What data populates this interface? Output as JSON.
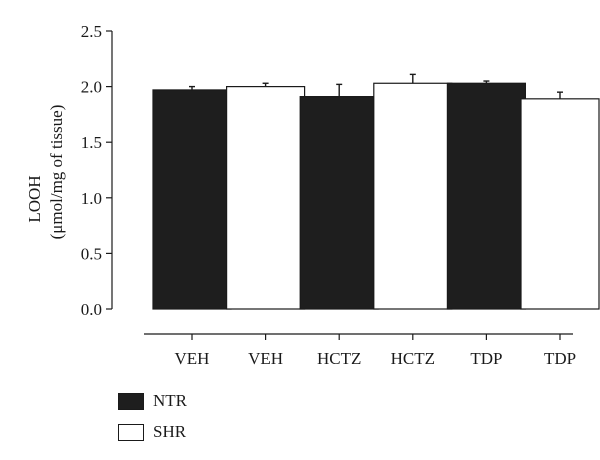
{
  "chart_data": {
    "type": "bar",
    "ylabel": "LOOH",
    "ylabel_sub": "(μmol/mg of tissue)",
    "ylim": [
      0,
      2.5
    ],
    "yticks": [
      "0.0",
      "0.5",
      "1.0",
      "1.5",
      "2.0",
      "2.5"
    ],
    "categories": [
      "VEH",
      "VEH",
      "HCTZ",
      "HCTZ",
      "TDP",
      "TDP"
    ],
    "groups": [
      "NTR",
      "SHR",
      "NTR",
      "SHR",
      "NTR",
      "SHR"
    ],
    "values": [
      1.97,
      2.0,
      1.91,
      2.03,
      2.03,
      1.89
    ],
    "errors": [
      0.03,
      0.03,
      0.11,
      0.08,
      0.02,
      0.06
    ],
    "legend": [
      {
        "name": "NTR",
        "color": "#1e1e1e"
      },
      {
        "name": "SHR",
        "color": "#ffffff"
      }
    ],
    "grid": false,
    "legend_placement": "bottom-left"
  }
}
